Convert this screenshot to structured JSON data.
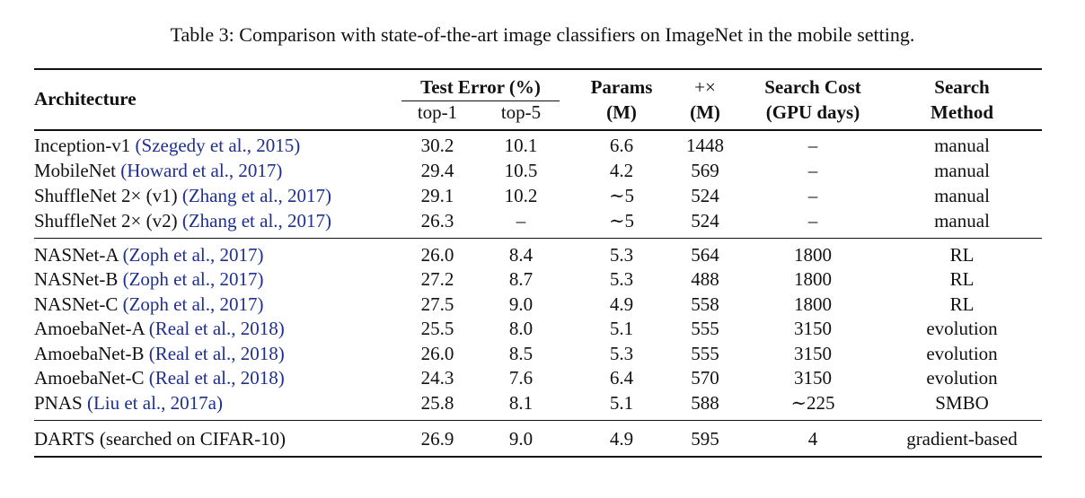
{
  "caption": "Table 3: Comparison with state-of-the-art image classifiers on ImageNet in the mobile setting.",
  "header": {
    "architecture": "Architecture",
    "test_error": "Test Error (%)",
    "top1": "top-1",
    "top5": "top-5",
    "params": "Params",
    "params_unit": "(M)",
    "multadds": "+×",
    "multadds_unit": "(M)",
    "search_cost": "Search Cost",
    "search_cost_unit": "(GPU days)",
    "search_method": "Search",
    "search_method2": "Method"
  },
  "rows": [
    {
      "name": "Inception-v1 ",
      "cite": "(Szegedy et al., 2015)",
      "top1": "30.2",
      "top5": "10.1",
      "params": "6.6",
      "madds": "1448",
      "cost": "–",
      "method": "manual"
    },
    {
      "name": "MobileNet ",
      "cite": "(Howard et al., 2017)",
      "top1": "29.4",
      "top5": "10.5",
      "params": "4.2",
      "madds": "569",
      "cost": "–",
      "method": "manual"
    },
    {
      "name": "ShuffleNet 2× (v1) ",
      "cite": "(Zhang et al., 2017)",
      "top1": "29.1",
      "top5": "10.2",
      "params": "∼5",
      "madds": "524",
      "cost": "–",
      "method": "manual"
    },
    {
      "name": "ShuffleNet 2× (v2) ",
      "cite": "(Zhang et al., 2017)",
      "top1": "26.3",
      "top5": "–",
      "params": "∼5",
      "madds": "524",
      "cost": "–",
      "method": "manual"
    },
    {
      "name": "NASNet-A ",
      "cite": "(Zoph et al., 2017)",
      "top1": "26.0",
      "top5": "8.4",
      "params": "5.3",
      "madds": "564",
      "cost": "1800",
      "method": "RL"
    },
    {
      "name": "NASNet-B ",
      "cite": "(Zoph et al., 2017)",
      "top1": "27.2",
      "top5": "8.7",
      "params": "5.3",
      "madds": "488",
      "cost": "1800",
      "method": "RL"
    },
    {
      "name": "NASNet-C ",
      "cite": "(Zoph et al., 2017)",
      "top1": "27.5",
      "top5": "9.0",
      "params": "4.9",
      "madds": "558",
      "cost": "1800",
      "method": "RL"
    },
    {
      "name": "AmoebaNet-A ",
      "cite": "(Real et al., 2018)",
      "top1": "25.5",
      "top5": "8.0",
      "params": "5.1",
      "madds": "555",
      "cost": "3150",
      "method": "evolution"
    },
    {
      "name": "AmoebaNet-B ",
      "cite": "(Real et al., 2018)",
      "top1": "26.0",
      "top5": "8.5",
      "params": "5.3",
      "madds": "555",
      "cost": "3150",
      "method": "evolution"
    },
    {
      "name": "AmoebaNet-C ",
      "cite": "(Real et al., 2018)",
      "top1": "24.3",
      "top5": "7.6",
      "params": "6.4",
      "madds": "570",
      "cost": "3150",
      "method": "evolution"
    },
    {
      "name": "PNAS ",
      "cite": "(Liu et al., 2017a)",
      "top1": "25.8",
      "top5": "8.1",
      "params": "5.1",
      "madds": "588",
      "cost": "∼225",
      "method": "SMBO"
    },
    {
      "name": "DARTS (searched on CIFAR-10)",
      "cite": "",
      "top1": "26.9",
      "top5": "9.0",
      "params": "4.9",
      "madds": "595",
      "cost": "4",
      "method": "gradient-based"
    }
  ]
}
